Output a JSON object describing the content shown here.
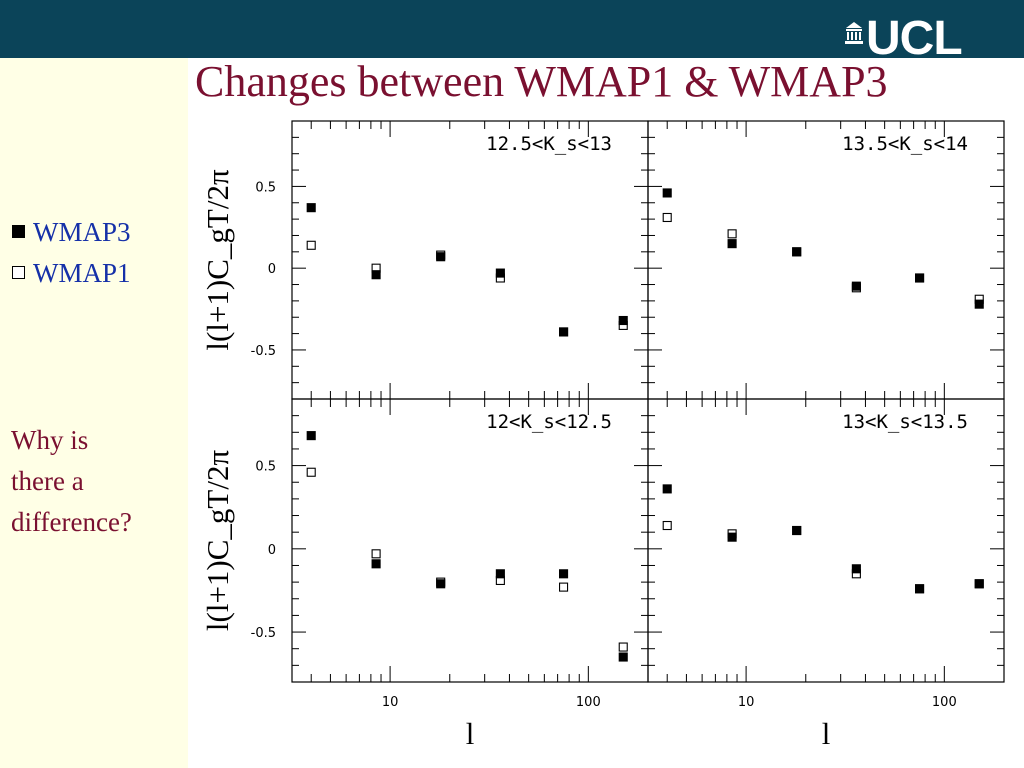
{
  "header": {
    "logo_text": "UCL",
    "logo_icon": "ucl-portico-icon"
  },
  "title": "Changes between WMAP1 & WMAP3",
  "sidebar": {
    "legend": [
      {
        "symbol": "■",
        "label": "WMAP3",
        "icon": "filled-square-icon"
      },
      {
        "symbol": "□",
        "label": "WMAP1",
        "icon": "open-square-icon"
      }
    ],
    "question_lines": [
      "Why is",
      "there a",
      "difference?"
    ]
  },
  "colors": {
    "bar": "#0b4459",
    "sidebar": "#ffffe6",
    "title": "#7a1030",
    "legend": "#1530a8"
  },
  "chart_data": {
    "type": "scatter",
    "x_scale": "log",
    "xlim": [
      3.2,
      200
    ],
    "ylim": [
      -0.8,
      0.9
    ],
    "xlabel": "l",
    "ylabel": "l(l+1)C_gT/2π",
    "x_ticks": [
      "10",
      "100"
    ],
    "y_ticks": [
      "0.5",
      "0",
      "-0.5"
    ],
    "x": [
      4,
      8.5,
      18,
      36,
      75,
      150
    ],
    "series_names": [
      "WMAP3",
      "WMAP1"
    ],
    "panels": [
      {
        "label": "12.5<K_s<13",
        "ylabel_visible": true,
        "xticks_visible": false,
        "series": [
          {
            "name": "WMAP3",
            "marker": "filled",
            "values": [
              0.37,
              -0.04,
              0.07,
              -0.03,
              -0.39,
              -0.32
            ]
          },
          {
            "name": "WMAP1",
            "marker": "open",
            "values": [
              0.14,
              0.0,
              0.08,
              -0.06,
              -0.39,
              -0.35
            ]
          }
        ]
      },
      {
        "label": "13.5<K_s<14",
        "ylabel_visible": false,
        "xticks_visible": false,
        "series": [
          {
            "name": "WMAP3",
            "marker": "filled",
            "values": [
              0.46,
              0.15,
              0.1,
              -0.11,
              -0.06,
              -0.22
            ]
          },
          {
            "name": "WMAP1",
            "marker": "open",
            "values": [
              0.31,
              0.21,
              0.1,
              -0.12,
              -0.06,
              -0.19
            ]
          }
        ]
      },
      {
        "label": "12<K_s<12.5",
        "ylabel_visible": true,
        "xticks_visible": true,
        "series": [
          {
            "name": "WMAP3",
            "marker": "filled",
            "values": [
              0.68,
              -0.09,
              -0.21,
              -0.15,
              -0.15,
              -0.65
            ]
          },
          {
            "name": "WMAP1",
            "marker": "open",
            "values": [
              0.46,
              -0.03,
              -0.2,
              -0.19,
              -0.23,
              -0.59
            ]
          }
        ]
      },
      {
        "label": "13<K_s<13.5",
        "ylabel_visible": false,
        "xticks_visible": true,
        "series": [
          {
            "name": "WMAP3",
            "marker": "filled",
            "values": [
              0.36,
              0.07,
              0.11,
              -0.12,
              -0.24,
              -0.21
            ]
          },
          {
            "name": "WMAP1",
            "marker": "open",
            "values": [
              0.14,
              0.09,
              0.11,
              -0.15,
              -0.24,
              -0.21
            ]
          }
        ]
      }
    ]
  }
}
